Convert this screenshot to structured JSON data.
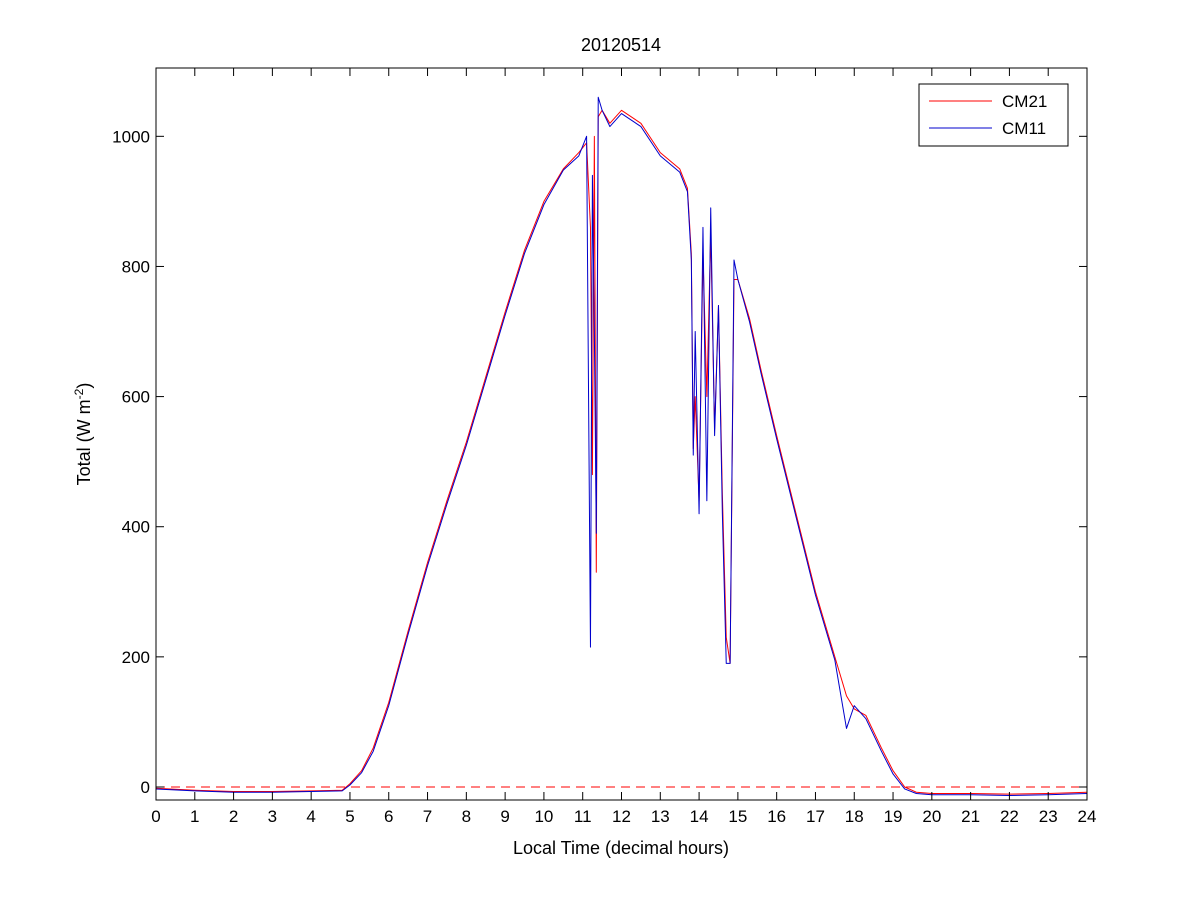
{
  "chart_data": {
    "type": "line",
    "title": "20120514",
    "xlabel": "Local Time (decimal hours)",
    "ylabel": "Total (W m",
    "ylabel_sup": "-2",
    "ylabel_end": ")",
    "xlim": [
      0,
      24
    ],
    "ylim": [
      -20,
      1105
    ],
    "xticks": [
      0,
      1,
      2,
      3,
      4,
      5,
      6,
      7,
      8,
      9,
      10,
      11,
      12,
      13,
      14,
      15,
      16,
      17,
      18,
      19,
      20,
      21,
      22,
      23,
      24
    ],
    "yticks": [
      0,
      200,
      400,
      600,
      800,
      1000
    ],
    "grid": false,
    "legend_position": "top-right",
    "reference_line": {
      "y": 0,
      "style": "dashed",
      "color": "#ff0000"
    },
    "series": [
      {
        "name": "CM21",
        "color": "#ff0000",
        "x": [
          0,
          1,
          2,
          3,
          4,
          4.8,
          5.0,
          5.3,
          5.6,
          6.0,
          6.5,
          7.0,
          7.5,
          8.0,
          8.5,
          9.0,
          9.5,
          10.0,
          10.5,
          10.9,
          11.1,
          11.2,
          11.25,
          11.3,
          11.35,
          11.4,
          11.5,
          11.7,
          12.0,
          12.5,
          13.0,
          13.5,
          13.7,
          13.8,
          13.85,
          13.9,
          14.0,
          14.1,
          14.2,
          14.3,
          14.4,
          14.5,
          14.6,
          14.7,
          14.8,
          14.9,
          15.0,
          15.3,
          15.6,
          16.0,
          16.5,
          17.0,
          17.5,
          17.8,
          18.0,
          18.3,
          18.7,
          19.0,
          19.3,
          19.6,
          20,
          21,
          22,
          23,
          24
        ],
        "y": [
          -2,
          -5,
          -7,
          -7,
          -6,
          -5,
          5,
          25,
          60,
          130,
          240,
          345,
          440,
          530,
          630,
          730,
          825,
          900,
          950,
          975,
          990,
          860,
          480,
          1000,
          330,
          1030,
          1040,
          1020,
          1040,
          1020,
          975,
          950,
          920,
          820,
          520,
          600,
          440,
          820,
          600,
          850,
          550,
          740,
          450,
          230,
          190,
          780,
          780,
          720,
          640,
          540,
          420,
          300,
          200,
          140,
          120,
          110,
          60,
          25,
          0,
          -8,
          -10,
          -10,
          -11,
          -10,
          -8
        ]
      },
      {
        "name": "CM11",
        "color": "#0000cc",
        "x": [
          0,
          1,
          2,
          3,
          4,
          4.8,
          5.0,
          5.3,
          5.6,
          6.0,
          6.5,
          7.0,
          7.5,
          8.0,
          8.5,
          9.0,
          9.5,
          10.0,
          10.5,
          10.9,
          11.1,
          11.2,
          11.25,
          11.3,
          11.35,
          11.4,
          11.5,
          11.7,
          12.0,
          12.5,
          13.0,
          13.5,
          13.7,
          13.8,
          13.85,
          13.9,
          14.0,
          14.1,
          14.2,
          14.3,
          14.4,
          14.5,
          14.6,
          14.7,
          14.8,
          14.9,
          15.0,
          15.3,
          15.6,
          16.0,
          16.5,
          17.0,
          17.5,
          17.8,
          18.0,
          18.3,
          18.7,
          19.0,
          19.3,
          19.6,
          20,
          21,
          22,
          23,
          24
        ],
        "y": [
          -3,
          -6,
          -8,
          -8,
          -7,
          -6,
          3,
          22,
          55,
          125,
          235,
          340,
          435,
          525,
          625,
          725,
          820,
          895,
          948,
          970,
          1000,
          215,
          940,
          700,
          390,
          1060,
          1040,
          1015,
          1035,
          1015,
          970,
          945,
          915,
          810,
          510,
          700,
          420,
          860,
          440,
          890,
          540,
          740,
          420,
          190,
          190,
          810,
          780,
          715,
          635,
          535,
          415,
          295,
          195,
          90,
          125,
          105,
          55,
          20,
          -3,
          -10,
          -12,
          -12,
          -13,
          -12,
          -10
        ]
      }
    ]
  }
}
